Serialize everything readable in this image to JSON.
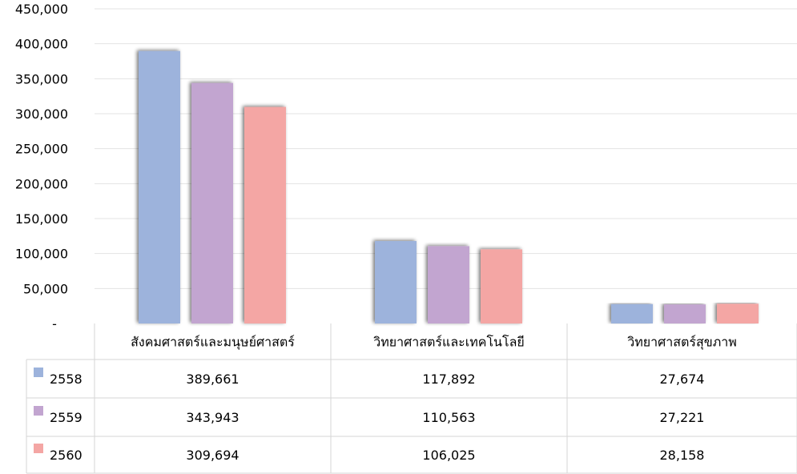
{
  "chart_data": {
    "type": "bar",
    "title": "",
    "xlabel": "",
    "ylabel": "",
    "ylim": [
      0,
      450000
    ],
    "y_ticks": [
      {
        "value": 0,
        "label": "-"
      },
      {
        "value": 50000,
        "label": "50,000"
      },
      {
        "value": 100000,
        "label": "100,000"
      },
      {
        "value": 150000,
        "label": "150,000"
      },
      {
        "value": 200000,
        "label": "200,000"
      },
      {
        "value": 250000,
        "label": "250,000"
      },
      {
        "value": 300000,
        "label": "300,000"
      },
      {
        "value": 350000,
        "label": "350,000"
      },
      {
        "value": 400000,
        "label": "400,000"
      },
      {
        "value": 450000,
        "label": "450,000"
      }
    ],
    "grid": true,
    "legend": "data-table-left",
    "categories": [
      "สังคมศาสตร์และมนุษย์ศาสตร์",
      "วิทยาศาสตร์และเทคโนโลยี",
      "วิทยาศาสตร์สุขภาพ"
    ],
    "series": [
      {
        "name": "2558",
        "color": "#9db3dc",
        "values": [
          389661,
          117892,
          27674
        ],
        "labels": [
          "389,661",
          "117,892",
          "27,674"
        ]
      },
      {
        "name": "2559",
        "color": "#c2a5d0",
        "values": [
          343943,
          110563,
          27221
        ],
        "labels": [
          "343,943",
          "110,563",
          "27,221"
        ]
      },
      {
        "name": "2560",
        "color": "#f4a6a4",
        "values": [
          309694,
          106025,
          28158
        ],
        "labels": [
          "309,694",
          "106,025",
          "28,158"
        ]
      }
    ]
  }
}
